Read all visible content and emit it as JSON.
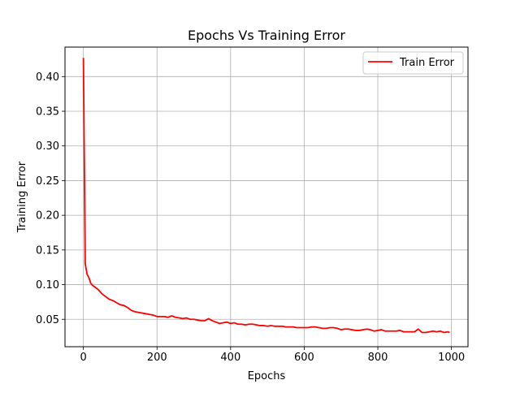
{
  "chart_data": {
    "type": "line",
    "title": "Epochs Vs Training Error",
    "xlabel": "Epochs",
    "ylabel": "Training Error",
    "xlim": [
      -50,
      1045
    ],
    "ylim": [
      0.0105,
      0.4425
    ],
    "xticks": [
      0,
      200,
      400,
      600,
      800,
      1000
    ],
    "xtick_labels": [
      "0",
      "200",
      "400",
      "600",
      "800",
      "1000"
    ],
    "yticks": [
      0.05,
      0.1,
      0.15,
      0.2,
      0.25,
      0.3,
      0.35,
      0.4
    ],
    "ytick_labels": [
      "0.05",
      "0.10",
      "0.15",
      "0.20",
      "0.25",
      "0.30",
      "0.35",
      "0.40"
    ],
    "grid": true,
    "legend_position": "top-right",
    "series": [
      {
        "name": "Train Error",
        "color": "#ff0000",
        "x": [
          0,
          5,
          10,
          15,
          20,
          25,
          30,
          40,
          50,
          60,
          70,
          80,
          90,
          100,
          110,
          120,
          130,
          140,
          150,
          160,
          170,
          180,
          190,
          200,
          210,
          220,
          230,
          240,
          250,
          260,
          270,
          280,
          290,
          300,
          310,
          320,
          330,
          340,
          350,
          360,
          370,
          380,
          390,
          400,
          410,
          420,
          430,
          440,
          450,
          460,
          470,
          480,
          490,
          500,
          510,
          520,
          530,
          540,
          550,
          560,
          570,
          580,
          590,
          600,
          610,
          620,
          630,
          640,
          650,
          660,
          670,
          680,
          690,
          700,
          710,
          720,
          730,
          740,
          750,
          760,
          770,
          780,
          790,
          800,
          810,
          820,
          830,
          840,
          850,
          860,
          870,
          880,
          890,
          900,
          910,
          920,
          930,
          940,
          950,
          960,
          970,
          980,
          990,
          995
        ],
        "y": [
          0.427,
          0.13,
          0.115,
          0.11,
          0.102,
          0.099,
          0.097,
          0.093,
          0.087,
          0.083,
          0.079,
          0.077,
          0.074,
          0.071,
          0.07,
          0.067,
          0.063,
          0.061,
          0.06,
          0.059,
          0.058,
          0.057,
          0.056,
          0.054,
          0.054,
          0.054,
          0.053,
          0.055,
          0.053,
          0.052,
          0.051,
          0.052,
          0.05,
          0.05,
          0.049,
          0.048,
          0.048,
          0.051,
          0.048,
          0.046,
          0.044,
          0.045,
          0.046,
          0.044,
          0.045,
          0.043,
          0.043,
          0.042,
          0.043,
          0.043,
          0.042,
          0.041,
          0.041,
          0.04,
          0.041,
          0.04,
          0.04,
          0.04,
          0.039,
          0.039,
          0.039,
          0.038,
          0.038,
          0.038,
          0.038,
          0.039,
          0.039,
          0.038,
          0.037,
          0.037,
          0.038,
          0.038,
          0.037,
          0.035,
          0.036,
          0.036,
          0.035,
          0.034,
          0.034,
          0.035,
          0.036,
          0.035,
          0.033,
          0.034,
          0.035,
          0.033,
          0.033,
          0.033,
          0.033,
          0.034,
          0.032,
          0.032,
          0.032,
          0.032,
          0.036,
          0.031,
          0.031,
          0.032,
          0.033,
          0.032,
          0.033,
          0.031,
          0.032,
          0.031
        ]
      }
    ]
  }
}
